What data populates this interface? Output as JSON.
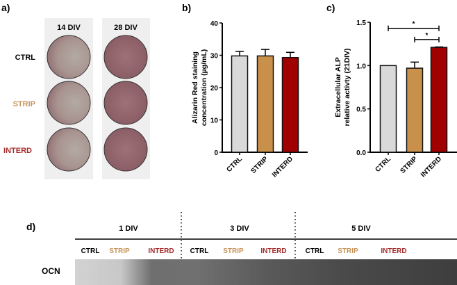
{
  "panel_labels": {
    "a": "a)",
    "b": "b)",
    "c": "c)",
    "d": "d)"
  },
  "colors": {
    "CTRL": "#d9d9d9",
    "STRIP": "#c8904a",
    "INTERD": "#a00000",
    "strip_text": "#c8945a",
    "interd_text": "#a52a2a"
  },
  "panel_a": {
    "columns": [
      "14 DIV",
      "28 DIV"
    ],
    "rows": [
      "CTRL",
      "STRIP",
      "INTERD"
    ]
  },
  "chart_data": [
    {
      "type": "bar",
      "panel": "b",
      "categories": [
        "CTRL",
        "STRIP",
        "INTERD"
      ],
      "values": [
        29.8,
        29.8,
        29.3
      ],
      "error": [
        1.4,
        2.0,
        1.6
      ],
      "ylabel_lines": [
        "Alizarin Red staining",
        "concentration (µg/mL)"
      ],
      "ylim": [
        0,
        40
      ],
      "yticks": [
        "0",
        "10",
        "20",
        "30",
        "40"
      ],
      "grid": false
    },
    {
      "type": "bar",
      "panel": "c",
      "categories": [
        "CTRL",
        "STRIP",
        "INTERD"
      ],
      "values": [
        1.0,
        0.97,
        1.21
      ],
      "error": [
        0,
        0.07,
        0.005
      ],
      "ylabel_lines": [
        "Extracellular ALP",
        "relative activty (21DIV)"
      ],
      "ylim": [
        0,
        1.5
      ],
      "yticks": [
        "0.0",
        "0.5",
        "1.0",
        "1.5"
      ],
      "grid": false,
      "significance": [
        {
          "from": "CTRL",
          "to": "INTERD",
          "label": "*",
          "y": 1.43
        },
        {
          "from": "STRIP",
          "to": "INTERD",
          "label": "*",
          "y": 1.3
        }
      ]
    }
  ],
  "panel_d": {
    "groups": [
      "1 DIV",
      "3 DIV",
      "5 DIV"
    ],
    "lanes": [
      "CTRL",
      "STRIP",
      "INTERD",
      "CTRL",
      "STRIP",
      "INTERD",
      "CTRL",
      "STRIP",
      "INTERD"
    ],
    "row_label": "OCN"
  }
}
